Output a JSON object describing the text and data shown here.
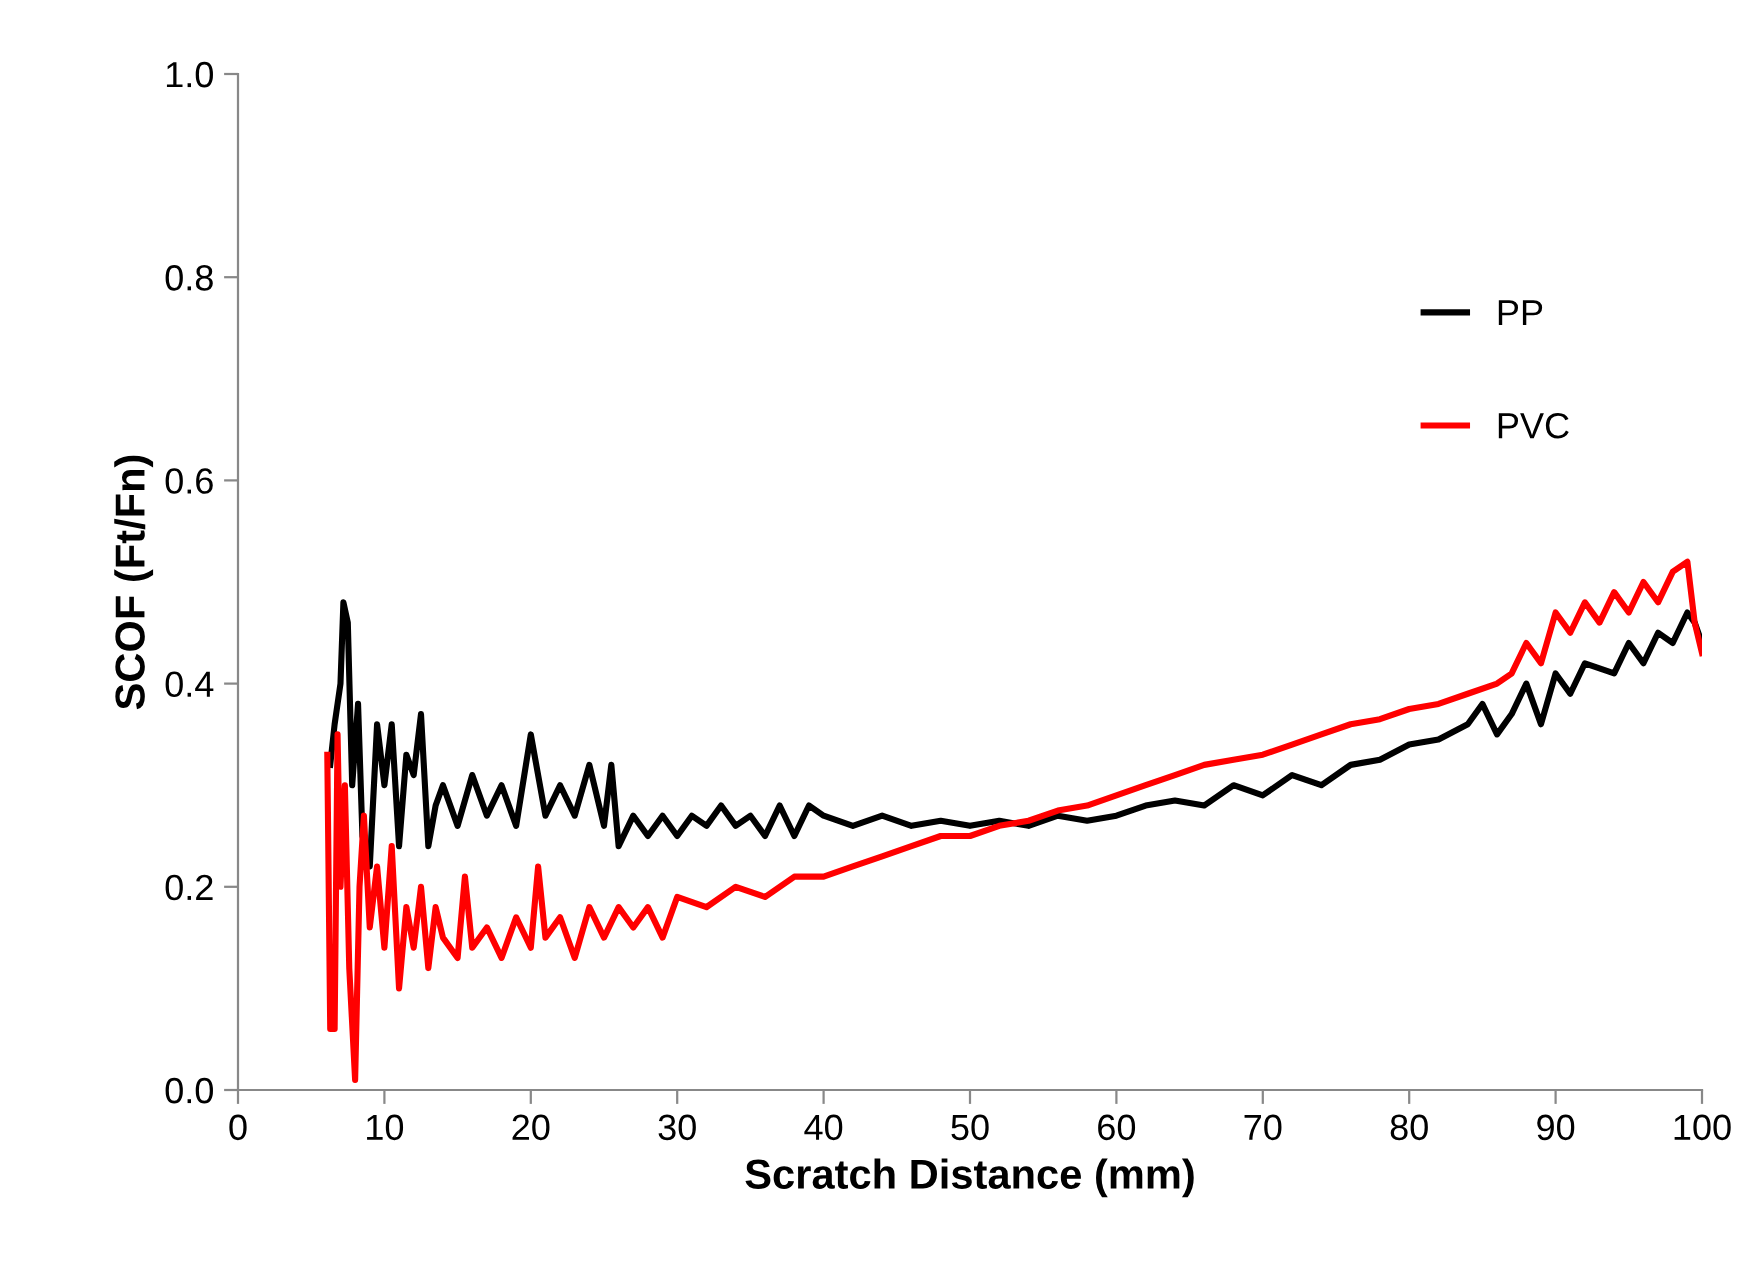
{
  "chart_data": {
    "type": "line",
    "xlabel": "Scratch Distance (mm)",
    "ylabel": "SCOF (Ft/Fn)",
    "xlim": [
      0,
      100
    ],
    "xticks": [
      0,
      10,
      20,
      30,
      40,
      50,
      60,
      70,
      80,
      90,
      100
    ],
    "ylim": [
      0,
      1.0
    ],
    "yticks": [
      {
        "value": 0,
        "label": "0.0"
      },
      0.2,
      0.4,
      0.6,
      0.8,
      {
        "value": 1.0,
        "label": "1.0"
      }
    ],
    "grid": false,
    "legend": "top right",
    "marker": "none",
    "line_style": "solid",
    "series": [
      {
        "name": "PP",
        "color": "#000000",
        "x": [
          6.3,
          6.6,
          7.0,
          7.2,
          7.5,
          7.8,
          8.2,
          8.5,
          9.0,
          9.5,
          10,
          10.5,
          11,
          11.5,
          12,
          12.5,
          13,
          13.5,
          14,
          15,
          16,
          17,
          18,
          19,
          20,
          21,
          22,
          23,
          24,
          25,
          25.5,
          26,
          27,
          28,
          29,
          30,
          31,
          32,
          33,
          34,
          35,
          36,
          37,
          38,
          39,
          40,
          42,
          44,
          46,
          48,
          50,
          52,
          54,
          56,
          58,
          60,
          62,
          64,
          66,
          68,
          70,
          72,
          74,
          76,
          78,
          80,
          82,
          84,
          85,
          86,
          87,
          88,
          89,
          90,
          91,
          92,
          94,
          95,
          96,
          97,
          98,
          99,
          99.5,
          100
        ],
        "values": [
          0.32,
          0.36,
          0.4,
          0.48,
          0.46,
          0.3,
          0.38,
          0.25,
          0.22,
          0.36,
          0.3,
          0.36,
          0.24,
          0.33,
          0.31,
          0.37,
          0.24,
          0.28,
          0.3,
          0.26,
          0.31,
          0.27,
          0.3,
          0.26,
          0.35,
          0.27,
          0.3,
          0.27,
          0.32,
          0.26,
          0.32,
          0.24,
          0.27,
          0.25,
          0.27,
          0.25,
          0.27,
          0.26,
          0.28,
          0.26,
          0.27,
          0.25,
          0.28,
          0.25,
          0.28,
          0.27,
          0.26,
          0.27,
          0.26,
          0.265,
          0.26,
          0.265,
          0.26,
          0.27,
          0.265,
          0.27,
          0.28,
          0.285,
          0.28,
          0.3,
          0.29,
          0.31,
          0.3,
          0.32,
          0.325,
          0.34,
          0.345,
          0.36,
          0.38,
          0.35,
          0.37,
          0.4,
          0.36,
          0.41,
          0.39,
          0.42,
          0.41,
          0.44,
          0.42,
          0.45,
          0.44,
          0.47,
          0.46,
          0.44
        ]
      },
      {
        "name": "PVC",
        "color": "#ff0000",
        "x": [
          6.1,
          6.3,
          6.6,
          6.8,
          7.0,
          7.3,
          7.6,
          8.0,
          8.3,
          8.6,
          9.0,
          9.5,
          10,
          10.5,
          11,
          11.5,
          12,
          12.5,
          13,
          13.5,
          14,
          15,
          15.5,
          16,
          17,
          18,
          19,
          20,
          20.5,
          21,
          22,
          23,
          24,
          25,
          26,
          27,
          28,
          29,
          30,
          32,
          34,
          36,
          38,
          40,
          42,
          44,
          46,
          48,
          50,
          52,
          54,
          56,
          58,
          60,
          62,
          64,
          66,
          68,
          70,
          72,
          74,
          76,
          78,
          80,
          82,
          84,
          86,
          87,
          88,
          89,
          90,
          91,
          92,
          93,
          94,
          95,
          96,
          97,
          98,
          99,
          99.5,
          100
        ],
        "values": [
          0.33,
          0.06,
          0.06,
          0.35,
          0.2,
          0.3,
          0.12,
          0.01,
          0.2,
          0.27,
          0.16,
          0.22,
          0.14,
          0.24,
          0.1,
          0.18,
          0.14,
          0.2,
          0.12,
          0.18,
          0.15,
          0.13,
          0.21,
          0.14,
          0.16,
          0.13,
          0.17,
          0.14,
          0.22,
          0.15,
          0.17,
          0.13,
          0.18,
          0.15,
          0.18,
          0.16,
          0.18,
          0.15,
          0.19,
          0.18,
          0.2,
          0.19,
          0.21,
          0.21,
          0.22,
          0.23,
          0.24,
          0.25,
          0.25,
          0.26,
          0.265,
          0.275,
          0.28,
          0.29,
          0.3,
          0.31,
          0.32,
          0.325,
          0.33,
          0.34,
          0.35,
          0.36,
          0.365,
          0.375,
          0.38,
          0.39,
          0.4,
          0.41,
          0.44,
          0.42,
          0.47,
          0.45,
          0.48,
          0.46,
          0.49,
          0.47,
          0.5,
          0.48,
          0.51,
          0.52,
          0.46,
          0.43
        ]
      }
    ]
  }
}
